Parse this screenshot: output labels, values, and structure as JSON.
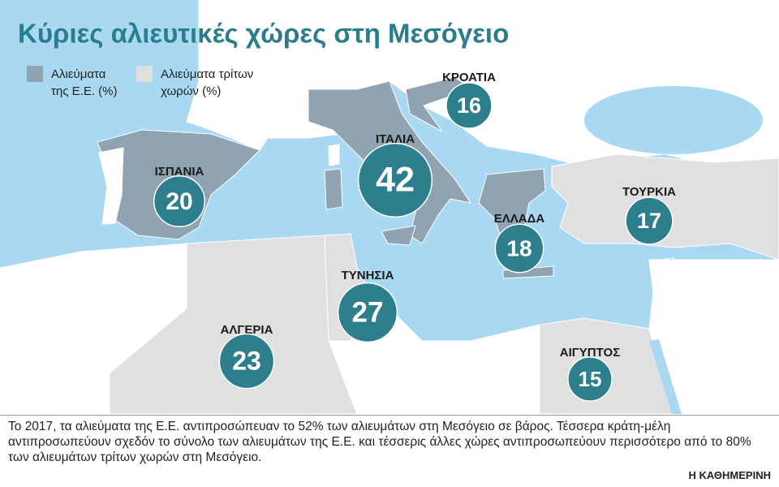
{
  "title": "Κύριες αλιευτικές χώρες στη Μεσόγειο",
  "legend": [
    {
      "lines": [
        "Αλιεύματα",
        "της Ε.Ε. (%)"
      ],
      "color": "#8fa3b0"
    },
    {
      "lines": [
        "Αλιεύματα τρίτων",
        "χωρών (%)"
      ],
      "color": "#e0e0e0"
    }
  ],
  "countries": [
    {
      "name": "ΚΡΟΑΤΙΑ",
      "value": 16
    },
    {
      "name": "ΙΤΑΛΙΑ",
      "value": 42
    },
    {
      "name": "ΙΣΠΑΝΙΑ",
      "value": 20
    },
    {
      "name": "ΤΟΥΡΚΙΑ",
      "value": 17
    },
    {
      "name": "ΕΛΛΑΔΑ",
      "value": 18
    },
    {
      "name": "ΤΥΝΗΣΙΑ",
      "value": 27
    },
    {
      "name": "ΑΛΓΕΡΙΑ",
      "value": 23
    },
    {
      "name": "ΑΙΓΥΠΤΟΣ",
      "value": 15
    }
  ],
  "note": "Το 2017, τα αλιεύματα της Ε.Ε. αντιπροσώπευαν το 52% των αλιευμάτων στη Μεσόγειο σε βάρος. Τέσσερα κράτη-μέλη αντιπροσωπεύουν σχεδόν το σύνολο των αλιευμάτων της Ε.Ε. και τέσσερις άλλες χώρες αντιπροσωπεύουν περισσότερο από το 80% των αλιευμάτων τρίτων χωρών στη Μεσόγειο.",
  "credit": "Η ΚΑΘΗΜΕΡΙΝΗ"
}
